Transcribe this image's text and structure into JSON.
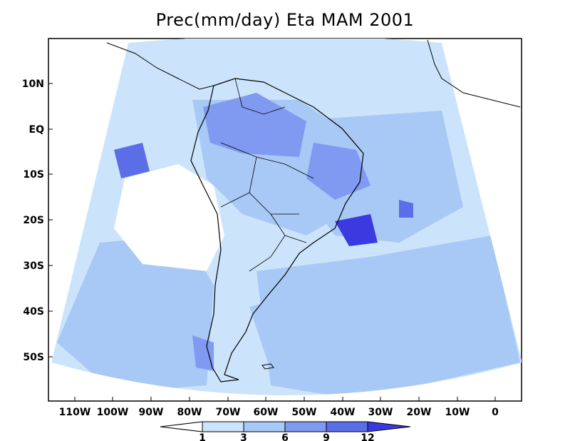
{
  "title": "Prec(mm/day) Eta MAM 2001",
  "y_axis_labels": [
    "10N",
    "EQ",
    "10S",
    "20S",
    "30S",
    "40S",
    "50S"
  ],
  "x_axis_labels": [
    "110W",
    "100W",
    "90W",
    "80W",
    "70W",
    "60W",
    "50W",
    "40W",
    "30W",
    "20W",
    "10W",
    "0"
  ],
  "colorbar": {
    "levels": [
      "1",
      "3",
      "6",
      "9",
      "12"
    ],
    "colors": [
      "#ffffff",
      "#cce4fb",
      "#a8c8f5",
      "#7f9af0",
      "#5b6ee8",
      "#3a3ae0"
    ]
  },
  "colors": {
    "background": "#ffffff",
    "ocean_low": "#cce4fb",
    "precip_mid": "#a8c8f5",
    "precip_high": "#7f9af0",
    "precip_very_high": "#5b6ee8",
    "precip_max": "#3a3ae0",
    "coastline": "#000000"
  }
}
